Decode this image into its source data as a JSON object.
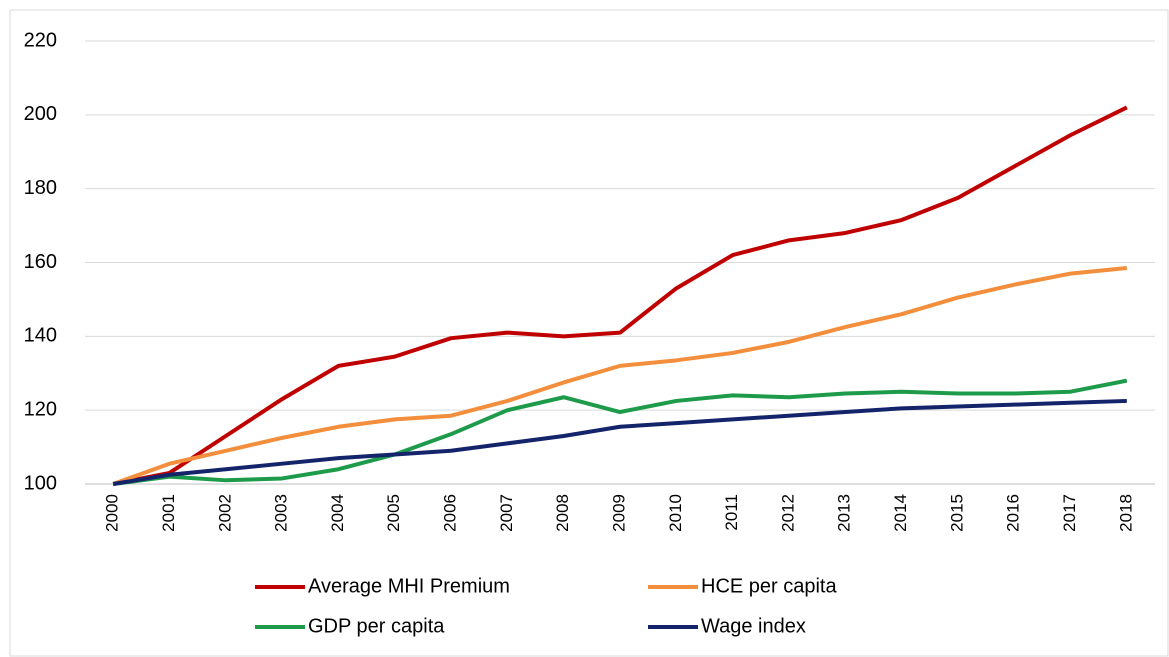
{
  "chart_data": {
    "type": "line",
    "categories": [
      "2000",
      "2001",
      "2002",
      "2003",
      "2004",
      "2005",
      "2006",
      "2007",
      "2008",
      "2009",
      "2010",
      "2011",
      "2012",
      "2013",
      "2014",
      "2015",
      "2016",
      "2017",
      "2018"
    ],
    "series": [
      {
        "name": "Average MHI Premium",
        "color": "#c00000",
        "values": [
          100,
          103,
          113,
          123,
          132,
          134.5,
          139.5,
          141,
          140,
          141,
          153,
          162,
          166,
          168,
          171.5,
          177.5,
          186,
          194.5,
          202
        ]
      },
      {
        "name": "HCE per capita",
        "color": "#f28e3c",
        "values": [
          100,
          105.5,
          109,
          112.5,
          115.5,
          117.5,
          118.5,
          122.5,
          127.5,
          132,
          133.5,
          135.5,
          138.5,
          142.5,
          146,
          150.5,
          154,
          157,
          158.5
        ]
      },
      {
        "name": "GDP per capita",
        "color": "#1e9b4a",
        "values": [
          100,
          102,
          101,
          101.5,
          104,
          108,
          113.5,
          120,
          123.5,
          119.5,
          122.5,
          124,
          123.5,
          124.5,
          125,
          124.5,
          124.5,
          125,
          128
        ]
      },
      {
        "name": "Wage index",
        "color": "#14246b",
        "values": [
          100,
          102.5,
          104,
          105.5,
          107,
          108,
          109,
          111,
          113,
          115.5,
          116.5,
          117.5,
          118.5,
          119.5,
          120.5,
          121,
          121.5,
          122,
          122.5
        ]
      }
    ],
    "ylim": [
      100,
      220
    ],
    "yticks": [
      100,
      120,
      140,
      160,
      180,
      200,
      220
    ],
    "grid": true,
    "legend": "bottom"
  }
}
